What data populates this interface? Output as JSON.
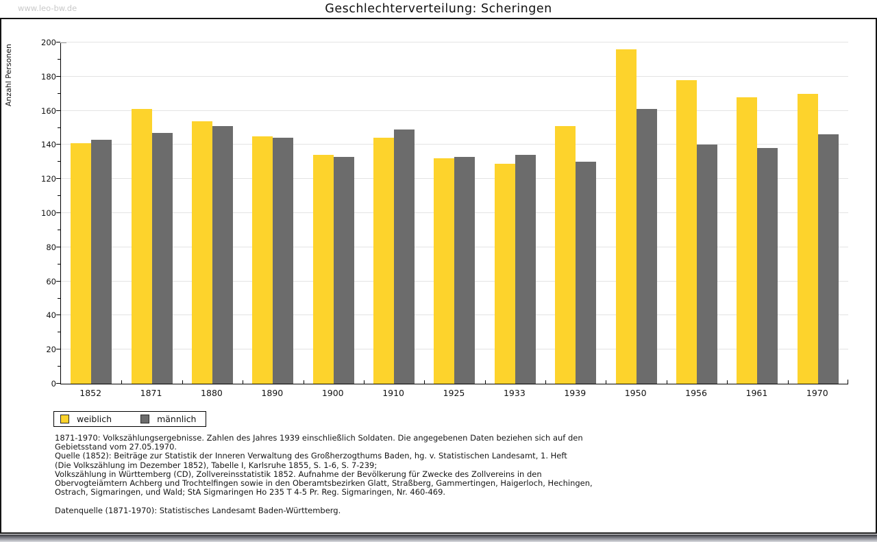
{
  "watermark": "www.leo-bw.de",
  "title": "Geschlechterverteilung: Scheringen",
  "chart_data": {
    "type": "bar",
    "title": "Geschlechterverteilung: Scheringen",
    "xlabel": "",
    "ylabel": "Anzahl Personen",
    "ylim": [
      0,
      200
    ],
    "ytick_step": 20,
    "ytick_minor_step": 10,
    "grid": true,
    "legend_position": "bottom-left",
    "categories": [
      "1852",
      "1871",
      "1880",
      "1890",
      "1900",
      "1910",
      "1925",
      "1933",
      "1939",
      "1950",
      "1956",
      "1961",
      "1970"
    ],
    "series": [
      {
        "name": "weiblich",
        "color": "#FDD32C",
        "values": [
          141,
          161,
          154,
          145,
          134,
          144,
          132,
          129,
          151,
          196,
          178,
          168,
          170
        ]
      },
      {
        "name": "männlich",
        "color": "#6C6C6C",
        "values": [
          143,
          147,
          151,
          144,
          133,
          149,
          133,
          134,
          130,
          161,
          140,
          138,
          146
        ]
      }
    ]
  },
  "footnotes": {
    "lines": [
      "1871-1970: Volkszählungsergebnisse. Zahlen des Jahres 1939 einschließlich Soldaten. Die angegebenen Daten beziehen sich auf den",
      "Gebietsstand vom 27.05.1970.",
      "Quelle (1852): Beiträge zur Statistik der Inneren Verwaltung des Großherzogthums Baden, hg. v. Statistischen Landesamt, 1. Heft",
      "(Die Volkszählung im Dezember 1852), Tabelle I, Karlsruhe 1855, S. 1-6, S. 7-239;",
      "Volkszählung in Württemberg (CD), Zollvereinsstatistik 1852. Aufnahme der Bevölkerung für Zwecke des Zollvereins in den",
      "Obervogteiämtern Achberg und Trochtelfingen sowie in den Oberamtsbezirken Glatt, Straßberg, Gammertingen, Haigerloch, Hechingen,",
      "Ostrach, Sigmaringen, und Wald; StA Sigmaringen Ho 235 T 4-5 Pr. Reg. Sigmaringen, Nr. 460-469."
    ],
    "datasource": "Datenquelle (1871-1970): Statistisches Landesamt Baden-Württemberg."
  },
  "colors": {
    "female_bar": "#FDD32C",
    "male_bar": "#6C6C6C",
    "gridline": "#E3E3E3",
    "axis": "#000000",
    "watermark_text": "#C9C9C9",
    "frame_border": "#141414"
  }
}
